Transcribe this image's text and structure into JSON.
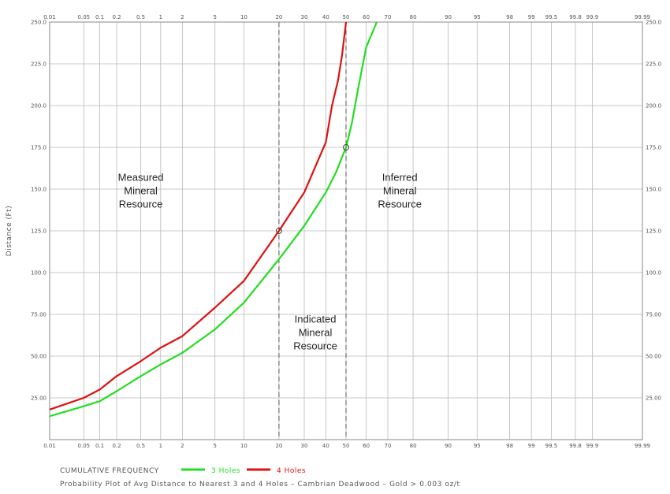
{
  "chart_data": {
    "type": "line",
    "title": "Probability Plot of Avg Distance to Nearest 3 and 4 Holes – Cambrian Deadwood – Gold > 0.003 oz/t",
    "xlabel": "CUMULATIVE FREQUENCY",
    "ylabel": "Distance (Ft)",
    "x_scale": "probability",
    "x_ticks": [
      "0.01",
      "0.05",
      "0.1",
      "0.2",
      "0.5",
      "1",
      "2",
      "5",
      "10",
      "20",
      "30",
      "40",
      "50",
      "60",
      "70",
      "80",
      "90",
      "95",
      "98",
      "99",
      "99.5",
      "99.8",
      "99.9",
      "99.99"
    ],
    "y_ticks": [
      "25.00",
      "50.00",
      "75.00",
      "100.0",
      "125.0",
      "150.0",
      "175.0",
      "200.0",
      "225.0",
      "250.0"
    ],
    "ylim": [
      0,
      250
    ],
    "grid": true,
    "series": [
      {
        "name": "3 Holes",
        "color": "#22dd22",
        "x": [
          0.01,
          0.05,
          0.1,
          0.2,
          0.5,
          1,
          2,
          5,
          10,
          20,
          30,
          40,
          45,
          50,
          53,
          56,
          60,
          65
        ],
        "y": [
          14,
          20,
          23,
          29,
          38,
          45,
          52,
          66,
          82,
          108,
          128,
          148,
          160,
          175,
          190,
          210,
          235,
          250
        ]
      },
      {
        "name": "4 Holes",
        "color": "#dd1111",
        "x": [
          0.01,
          0.05,
          0.1,
          0.2,
          0.5,
          1,
          2,
          5,
          10,
          20,
          30,
          40,
          43,
          46,
          48,
          50
        ],
        "y": [
          18,
          25,
          30,
          38,
          47,
          55,
          62,
          79,
          95,
          125,
          148,
          178,
          200,
          215,
          230,
          250
        ]
      }
    ],
    "reference_lines": [
      {
        "x": 20,
        "style": "dashed"
      },
      {
        "x": 50,
        "style": "dashed"
      }
    ],
    "markers": [
      {
        "x": 20,
        "y": 125
      },
      {
        "x": 50,
        "y": 175
      }
    ],
    "annotations": [
      {
        "lines": [
          "Measured",
          "Mineral",
          "Resource"
        ],
        "x": 0.5,
        "y": 155
      },
      {
        "lines": [
          "Indicated",
          "Mineral",
          "Resource"
        ],
        "x": 35,
        "y": 70
      },
      {
        "lines": [
          "Inferred",
          "Mineral",
          "Resource"
        ],
        "x": 75,
        "y": 155
      }
    ],
    "legend": {
      "title": "CUMULATIVE FREQUENCY",
      "items": [
        "3 Holes",
        "4 Holes"
      ],
      "position": "bottom-left"
    }
  }
}
